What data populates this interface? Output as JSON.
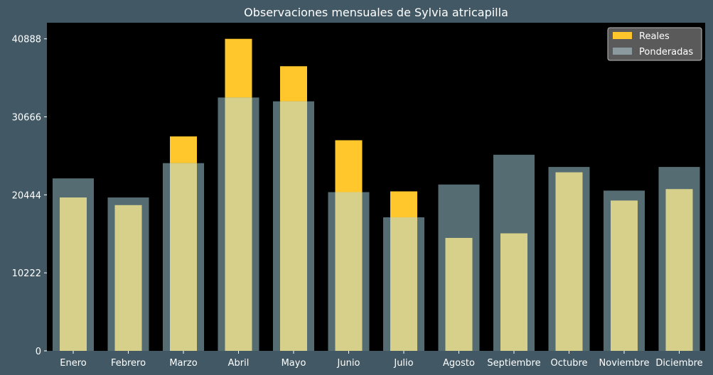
{
  "chart_data": {
    "type": "bar",
    "title": "Observaciones mensuales de Sylvia atricapilla",
    "xlabel": "",
    "ylabel": "",
    "categories": [
      "Enero",
      "Febrero",
      "Marzo",
      "Abril",
      "Mayo",
      "Junio",
      "Julio",
      "Agosto",
      "Septiembre",
      "Octubre",
      "Noviembre",
      "Diciembre"
    ],
    "series": [
      {
        "name": "Reales",
        "color": "#ffc72c",
        "values": [
          20100,
          19100,
          28100,
          40888,
          37300,
          27600,
          20900,
          14800,
          15400,
          23400,
          19700,
          21200
        ]
      },
      {
        "name": "Ponderadas",
        "color": "#8a9a9f",
        "values": [
          22600,
          20100,
          24600,
          33200,
          32700,
          20800,
          17500,
          21800,
          25700,
          24100,
          21000,
          24100
        ]
      }
    ],
    "yticks": [
      0,
      10222,
      20444,
      30666,
      40888
    ],
    "ylim": [
      0,
      43000
    ],
    "grid": false,
    "legend_position": "top-right",
    "colors": {
      "background": "#425965",
      "plot_background": "#000000",
      "overlap_fill": "#d6d08b"
    }
  }
}
